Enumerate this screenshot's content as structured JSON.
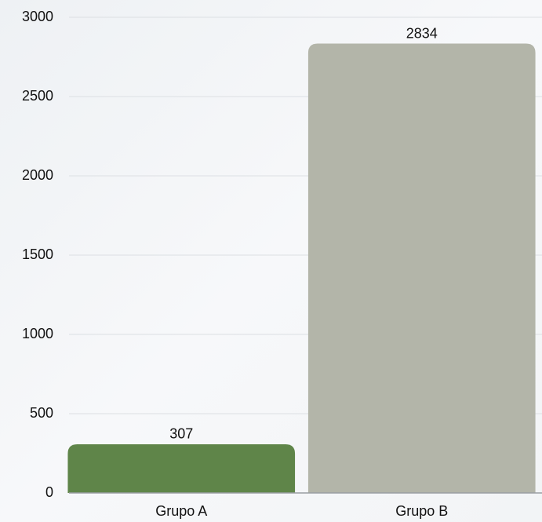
{
  "chart_data": {
    "type": "bar",
    "categories": [
      "Grupo A",
      "Grupo B"
    ],
    "values": [
      307,
      2834
    ],
    "colors": [
      "#5f8549",
      "#b3b5a9"
    ],
    "ylim": [
      0,
      3000
    ],
    "yticks": [
      0,
      500,
      1000,
      1500,
      2000,
      2500,
      3000
    ],
    "grid": true
  }
}
